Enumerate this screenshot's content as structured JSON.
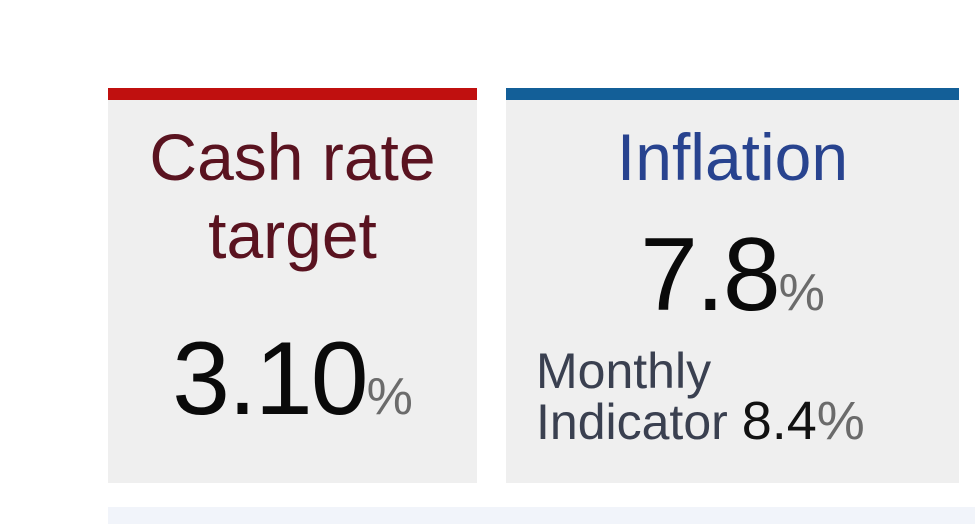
{
  "colors": {
    "cash_accent": "#c0100f",
    "inflation_accent": "#135f98",
    "card_bg": "#efefef"
  },
  "cash_rate": {
    "title_line1": "Cash rate",
    "title_line2": "target",
    "value": "3.10",
    "unit": "%"
  },
  "inflation": {
    "title": "Inflation",
    "value": "7.8",
    "unit": "%",
    "monthly_label_line1": "Monthly",
    "monthly_label_line2": "Indicator",
    "monthly_value": "8.4",
    "monthly_unit": "%"
  }
}
